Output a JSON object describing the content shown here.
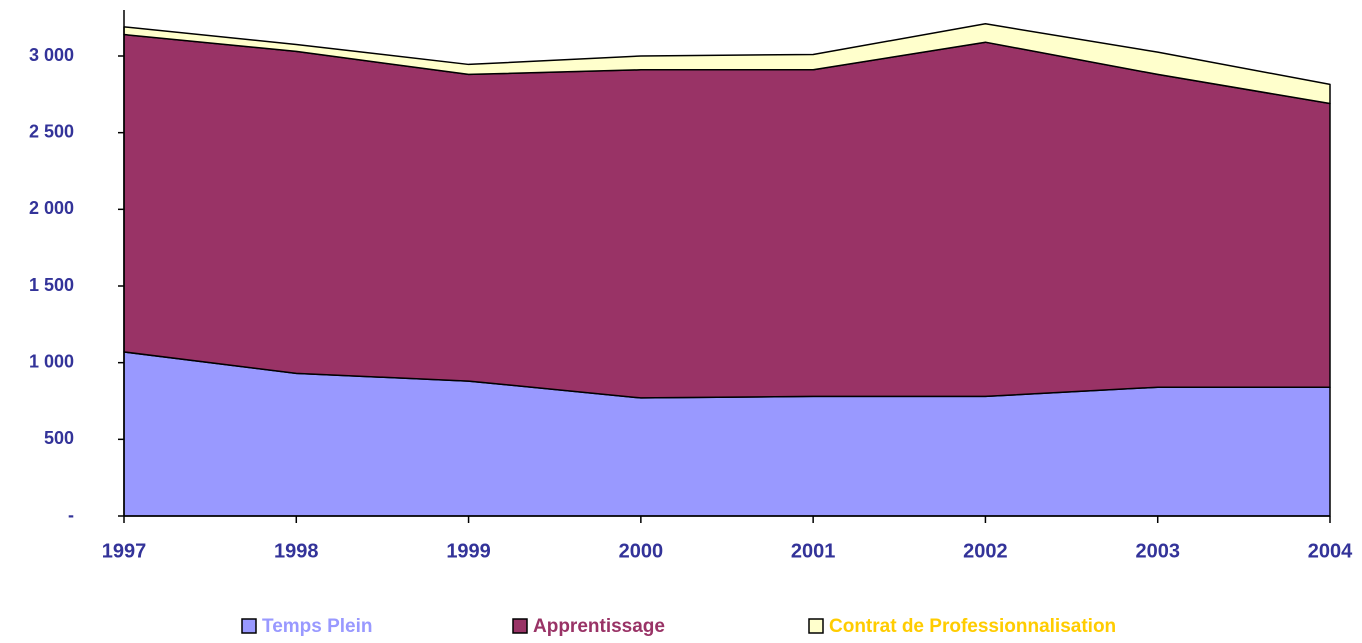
{
  "chart_data": {
    "type": "stacked_area",
    "categories": [
      "1997",
      "1998",
      "1999",
      "2000",
      "2001",
      "2002",
      "2003",
      "2004"
    ],
    "series": [
      {
        "name": "Temps Plein",
        "color": "#9999ff",
        "legend_color": "#9999ff",
        "values": [
          1070,
          930,
          880,
          770,
          780,
          780,
          840,
          840
        ]
      },
      {
        "name": "Apprentissage",
        "color": "#993366",
        "legend_color": "#993366",
        "values": [
          2070,
          2100,
          2000,
          2140,
          2130,
          2310,
          2040,
          1850
        ]
      },
      {
        "name": "Contrat de Professionnalisation",
        "color": "#ffffcc",
        "legend_color": "#ffcc00",
        "values": [
          50,
          45,
          65,
          90,
          100,
          120,
          145,
          125
        ]
      }
    ],
    "ylim": [
      0,
      3300
    ],
    "yticks": [
      {
        "value": 0,
        "label": "-"
      },
      500,
      {
        "value": 1000,
        "label": "1 000"
      },
      {
        "value": 1500,
        "label": "1 500"
      },
      {
        "value": 2000,
        "label": "2 000"
      },
      {
        "value": 2500,
        "label": "2 500"
      },
      {
        "value": 3000,
        "label": "3 000"
      }
    ],
    "axis_text_color": "#333399"
  }
}
